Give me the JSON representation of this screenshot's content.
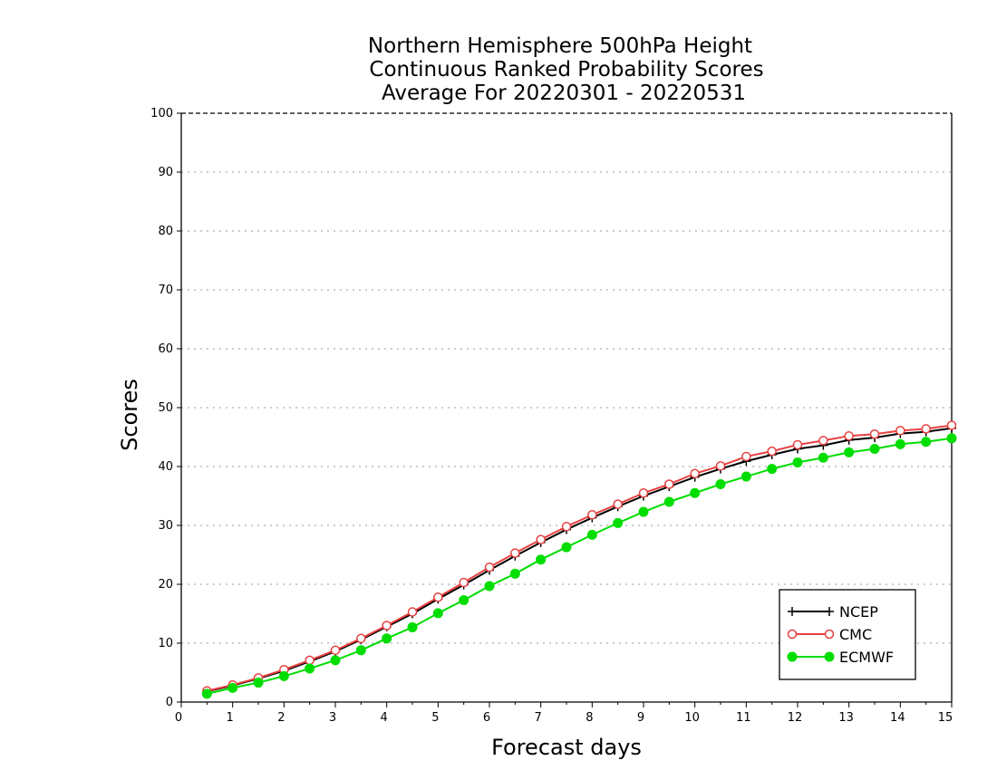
{
  "chart_data": {
    "type": "line",
    "title_lines": [
      "Northern Hemisphere 500hPa Height",
      "Continuous Ranked Probability Scores",
      "Average For 20220301 - 20220531"
    ],
    "xlabel": "Forecast days",
    "ylabel": "Scores",
    "xlim": [
      0,
      15
    ],
    "ylim": [
      0,
      100
    ],
    "xticks": [
      0,
      1,
      2,
      3,
      4,
      5,
      6,
      7,
      8,
      9,
      10,
      11,
      12,
      13,
      14,
      15
    ],
    "yticks": [
      0,
      10,
      20,
      30,
      40,
      50,
      60,
      70,
      80,
      90,
      100
    ],
    "grid": true,
    "legend_position": "lower-right",
    "x": [
      0.5,
      1,
      1.5,
      2,
      2.5,
      3,
      3.5,
      4,
      4.5,
      5,
      5.5,
      6,
      6.5,
      7,
      7.5,
      8,
      8.5,
      9,
      9.5,
      10,
      10.5,
      11,
      11.5,
      12,
      12.5,
      13,
      13.5,
      14,
      14.5,
      15
    ],
    "series": [
      {
        "name": "NCEP",
        "color": "#000000",
        "marker": "plus",
        "values": [
          1.8,
          2.8,
          4.0,
          5.3,
          6.9,
          8.6,
          10.6,
          12.8,
          15.0,
          17.5,
          19.9,
          22.4,
          24.8,
          27.1,
          29.3,
          31.3,
          33.2,
          35.0,
          36.6,
          38.2,
          39.6,
          40.9,
          42.0,
          43.0,
          43.6,
          44.5,
          44.9,
          45.6,
          45.9,
          46.5
        ]
      },
      {
        "name": "CMC",
        "color": "#e84040",
        "marker": "open-circle",
        "values": [
          1.9,
          2.9,
          4.1,
          5.5,
          7.1,
          8.8,
          10.8,
          13.0,
          15.3,
          17.8,
          20.3,
          22.9,
          25.3,
          27.6,
          29.8,
          31.8,
          33.6,
          35.5,
          37.0,
          38.8,
          40.1,
          41.7,
          42.6,
          43.7,
          44.4,
          45.2,
          45.5,
          46.1,
          46.4,
          47.0
        ]
      },
      {
        "name": "ECMWF",
        "color": "#00dd00",
        "marker": "filled-circle",
        "values": [
          1.4,
          2.4,
          3.3,
          4.4,
          5.7,
          7.1,
          8.8,
          10.8,
          12.7,
          15.1,
          17.3,
          19.7,
          21.8,
          24.2,
          26.3,
          28.4,
          30.4,
          32.3,
          34.0,
          35.5,
          37.0,
          38.3,
          39.6,
          40.7,
          41.5,
          42.4,
          43.0,
          43.8,
          44.2,
          44.8
        ]
      }
    ]
  }
}
